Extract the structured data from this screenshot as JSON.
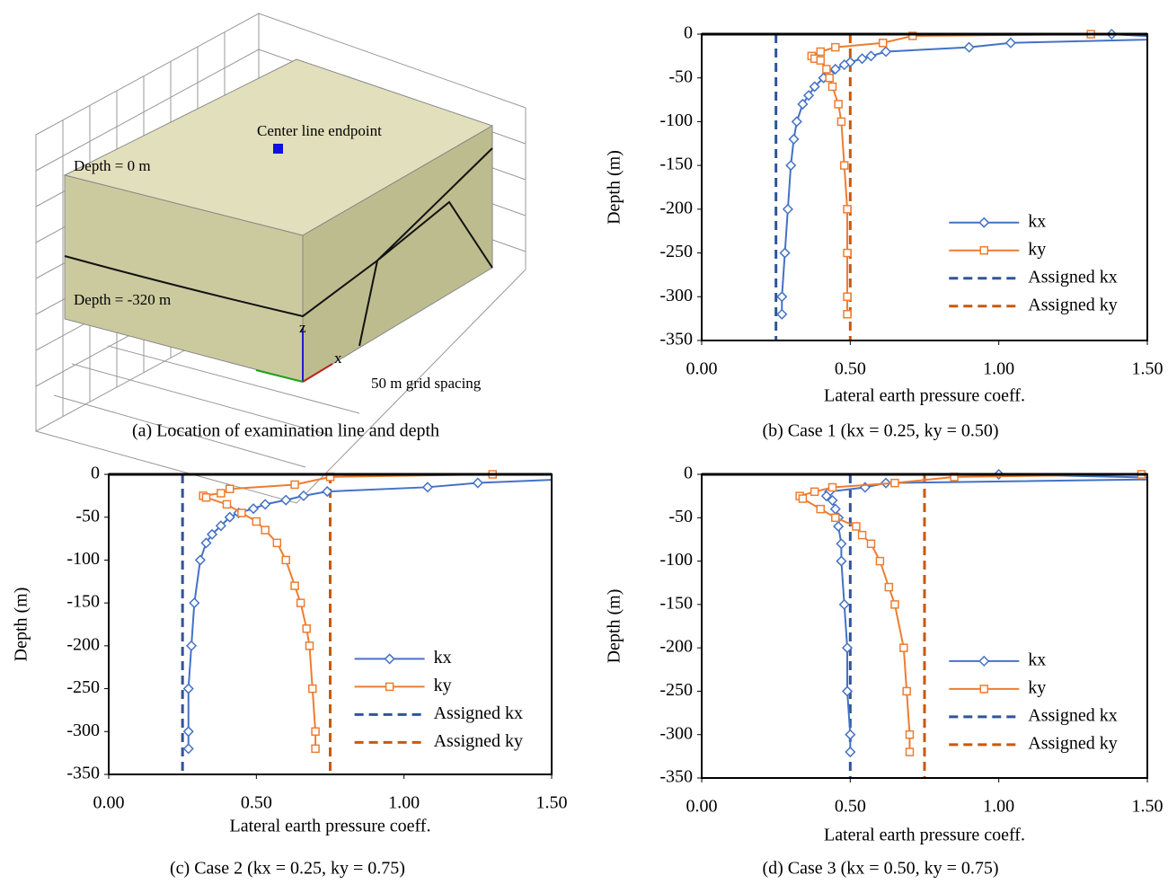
{
  "panel_a": {
    "caption": "(a) Location of examination line and depth",
    "labels": {
      "endpoint": "Center line endpoint",
      "top": "Depth = 0 m",
      "bottom": "Depth = -320 m",
      "grid": "50 m grid spacing",
      "z": "z",
      "x": "x"
    }
  },
  "chart_data": [
    {
      "type": "line",
      "caption": "(b) Case 1 (kx = 0.25, ky = 0.50)",
      "xlabel": "Lateral earth pressure coeff.",
      "ylabel": "Depth (m)",
      "xlim": [
        0,
        1.5
      ],
      "ylim": [
        -350,
        0
      ],
      "legend": "lower right",
      "xticks": [
        {
          "value": 0,
          "label": "0.00"
        },
        {
          "value": 0.5,
          "label": "0.50"
        },
        {
          "value": 1,
          "label": "1.00"
        },
        {
          "value": 1.5,
          "label": "1.50"
        }
      ],
      "yticks": [
        0,
        -50,
        -100,
        -150,
        -200,
        -250,
        -300,
        -350
      ],
      "series": [
        {
          "name": "kx",
          "color": "#4472c4",
          "marker": "diamond",
          "x": [
            1.38,
            1.65,
            1.04,
            0.9,
            0.62,
            0.57,
            0.54,
            0.5,
            0.48,
            0.45,
            0.43,
            0.41,
            0.38,
            0.36,
            0.34,
            0.32,
            0.31,
            0.3,
            0.29,
            0.28,
            0.27,
            0.27
          ],
          "values": [
            0,
            -5,
            -10,
            -15,
            -20,
            -25,
            -28,
            -32,
            -35,
            -40,
            -45,
            -50,
            -60,
            -70,
            -80,
            -100,
            -120,
            -150,
            -200,
            -250,
            -300,
            -320
          ]
        },
        {
          "name": "ky",
          "color": "#ed7d31",
          "marker": "square",
          "x": [
            1.31,
            0.71,
            0.61,
            0.45,
            0.4,
            0.37,
            0.38,
            0.4,
            0.42,
            0.43,
            0.44,
            0.46,
            0.47,
            0.48,
            0.49,
            0.49,
            0.49,
            0.49
          ],
          "values": [
            0,
            -2,
            -10,
            -15,
            -20,
            -25,
            -28,
            -30,
            -40,
            -50,
            -60,
            -80,
            -100,
            -150,
            -200,
            -250,
            -300,
            -320
          ]
        }
      ],
      "reference_lines": [
        {
          "name": "Assigned kx",
          "color": "#2f5597",
          "value": 0.25
        },
        {
          "name": "Assigned ky",
          "color": "#c55a11",
          "value": 0.5
        }
      ]
    },
    {
      "type": "line",
      "caption": "(c) Case 2 (kx = 0.25, ky = 0.75)",
      "xlabel": "Lateral earth pressure coeff.",
      "ylabel": "Depth (m)",
      "xlim": [
        0,
        1.5
      ],
      "ylim": [
        -350,
        0
      ],
      "legend": "lower right",
      "xticks": [
        {
          "value": 0,
          "label": "0.00"
        },
        {
          "value": 0.5,
          "label": "0.50"
        },
        {
          "value": 1,
          "label": "1.00"
        },
        {
          "value": 1.5,
          "label": "1.50"
        }
      ],
      "yticks": [
        0,
        -50,
        -100,
        -150,
        -200,
        -250,
        -300,
        -350
      ],
      "series": [
        {
          "name": "kx",
          "color": "#4472c4",
          "marker": "diamond",
          "x": [
            1.6,
            1.25,
            1.08,
            0.74,
            0.66,
            0.6,
            0.53,
            0.49,
            0.44,
            0.41,
            0.38,
            0.35,
            0.33,
            0.31,
            0.29,
            0.28,
            0.27,
            0.27,
            0.27
          ],
          "values": [
            -5,
            -10,
            -15,
            -20,
            -25,
            -30,
            -35,
            -40,
            -45,
            -50,
            -60,
            -70,
            -80,
            -100,
            -150,
            -200,
            -250,
            -300,
            -320
          ]
        },
        {
          "name": "ky",
          "color": "#ed7d31",
          "marker": "square",
          "x": [
            1.3,
            0.75,
            0.63,
            0.41,
            0.38,
            0.32,
            0.33,
            0.4,
            0.45,
            0.5,
            0.53,
            0.57,
            0.6,
            0.63,
            0.65,
            0.67,
            0.68,
            0.69,
            0.7,
            0.7
          ],
          "values": [
            0,
            -3,
            -12,
            -17,
            -22,
            -25,
            -27,
            -35,
            -45,
            -55,
            -65,
            -80,
            -100,
            -130,
            -150,
            -180,
            -200,
            -250,
            -300,
            -320
          ]
        }
      ],
      "reference_lines": [
        {
          "name": "Assigned kx",
          "color": "#2f5597",
          "value": 0.25
        },
        {
          "name": "Assigned ky",
          "color": "#c55a11",
          "value": 0.75
        }
      ]
    },
    {
      "type": "line",
      "caption": "(d) Case 3 (kx = 0.50, ky = 0.75)",
      "xlabel": "Lateral earth pressure coeff.",
      "ylabel": "Depth (m)",
      "xlim": [
        0,
        1.5
      ],
      "ylim": [
        -350,
        0
      ],
      "legend": "lower right",
      "xticks": [
        {
          "value": 0,
          "label": "0.00"
        },
        {
          "value": 0.5,
          "label": "0.50"
        },
        {
          "value": 1,
          "label": "1.00"
        },
        {
          "value": 1.5,
          "label": "1.50"
        }
      ],
      "yticks": [
        0,
        -50,
        -100,
        -150,
        -200,
        -250,
        -300,
        -350
      ],
      "series": [
        {
          "name": "kx",
          "color": "#4472c4",
          "marker": "diamond",
          "x": [
            1,
            1.7,
            0.62,
            0.55,
            0.43,
            0.42,
            0.44,
            0.45,
            0.46,
            0.46,
            0.47,
            0.47,
            0.48,
            0.49,
            0.49,
            0.5,
            0.5
          ],
          "values": [
            0,
            -5,
            -10,
            -15,
            -20,
            -25,
            -30,
            -40,
            -50,
            -60,
            -80,
            -100,
            -150,
            -200,
            -250,
            -300,
            -320
          ]
        },
        {
          "name": "ky",
          "color": "#ed7d31",
          "marker": "square",
          "x": [
            1.48,
            0.85,
            0.65,
            0.44,
            0.38,
            0.33,
            0.34,
            0.4,
            0.45,
            0.52,
            0.54,
            0.57,
            0.6,
            0.63,
            0.65,
            0.68,
            0.69,
            0.7,
            0.7
          ],
          "values": [
            0,
            -3,
            -10,
            -15,
            -20,
            -25,
            -28,
            -40,
            -50,
            -60,
            -70,
            -80,
            -100,
            -130,
            -150,
            -200,
            -250,
            -300,
            -320
          ]
        }
      ],
      "reference_lines": [
        {
          "name": "Assigned kx",
          "color": "#2f5597",
          "value": 0.5
        },
        {
          "name": "Assigned ky",
          "color": "#c55a11",
          "value": 0.75
        }
      ]
    }
  ]
}
